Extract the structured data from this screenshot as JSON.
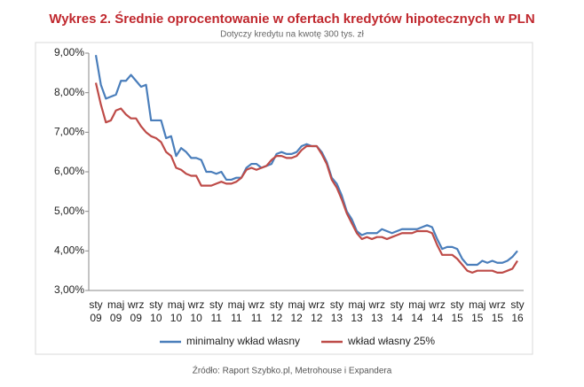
{
  "chart_data": {
    "type": "line",
    "title": "Wykres 2. Średnie oprocentowanie w ofertach kredytów hipotecznych w PLN",
    "subtitle": "Dotyczy kredytu na kwotę 300 tys. zł",
    "source": "Źródło: Raport Szybko.pl, Metrohouse i Expandera",
    "categories": [
      "sty 09",
      null,
      null,
      null,
      "maj 09",
      null,
      null,
      null,
      "wrz 09",
      null,
      null,
      null,
      "sty 10",
      null,
      null,
      null,
      "maj 10",
      null,
      null,
      null,
      "wrz 10",
      null,
      null,
      null,
      "sty 11",
      null,
      null,
      null,
      "maj 11",
      null,
      null,
      null,
      "wrz 11",
      null,
      null,
      null,
      "sty 12",
      null,
      null,
      null,
      "maj 12",
      null,
      null,
      null,
      "wrz 12",
      null,
      null,
      null,
      "sty 13",
      null,
      null,
      null,
      "maj 13",
      null,
      null,
      null,
      "wrz 13",
      null,
      null,
      null,
      "sty 14",
      null,
      null,
      null,
      "maj 14",
      null,
      null,
      null,
      "wrz 14",
      null,
      null,
      null,
      "sty 15",
      null,
      null,
      null,
      "maj 15",
      null,
      null,
      null,
      "wrz 15",
      null,
      null,
      null,
      "sty 16"
    ],
    "series": [
      {
        "name": "minimalny wkład własny",
        "color": "#4a7ebb",
        "values": [
          8.95,
          8.2,
          7.85,
          7.9,
          7.95,
          8.3,
          8.3,
          8.45,
          8.3,
          8.15,
          8.2,
          7.3,
          7.3,
          7.3,
          6.85,
          6.9,
          6.4,
          6.6,
          6.5,
          6.35,
          6.35,
          6.3,
          6.0,
          6.0,
          5.95,
          6.0,
          5.8,
          5.8,
          5.85,
          5.85,
          6.1,
          6.2,
          6.2,
          6.1,
          6.15,
          6.2,
          6.45,
          6.5,
          6.45,
          6.45,
          6.5,
          6.65,
          6.7,
          6.65,
          6.65,
          6.5,
          6.25,
          5.85,
          5.7,
          5.4,
          5.0,
          4.8,
          4.5,
          4.4,
          4.45,
          4.45,
          4.45,
          4.55,
          4.5,
          4.45,
          4.5,
          4.55,
          4.55,
          4.55,
          4.55,
          4.6,
          4.65,
          4.6,
          4.3,
          4.05,
          4.1,
          4.1,
          4.05,
          3.8,
          3.65,
          3.65,
          3.65,
          3.75,
          3.7,
          3.75,
          3.7,
          3.7,
          3.75,
          3.85,
          4.0
        ]
      },
      {
        "name": "wkład własny 25%",
        "color": "#be4b48",
        "values": [
          8.25,
          7.7,
          7.25,
          7.3,
          7.55,
          7.6,
          7.45,
          7.35,
          7.35,
          7.15,
          7.0,
          6.9,
          6.85,
          6.75,
          6.5,
          6.4,
          6.1,
          6.05,
          5.95,
          5.9,
          5.9,
          5.65,
          5.65,
          5.65,
          5.7,
          5.75,
          5.7,
          5.7,
          5.75,
          5.85,
          6.05,
          6.1,
          6.05,
          6.1,
          6.15,
          6.3,
          6.4,
          6.4,
          6.35,
          6.35,
          6.4,
          6.55,
          6.65,
          6.65,
          6.65,
          6.45,
          6.2,
          5.8,
          5.6,
          5.3,
          4.95,
          4.7,
          4.45,
          4.3,
          4.35,
          4.3,
          4.35,
          4.35,
          4.3,
          4.35,
          4.4,
          4.45,
          4.45,
          4.45,
          4.5,
          4.5,
          4.5,
          4.45,
          4.15,
          3.9,
          3.9,
          3.9,
          3.8,
          3.65,
          3.5,
          3.45,
          3.5,
          3.5,
          3.5,
          3.5,
          3.45,
          3.45,
          3.5,
          3.55,
          3.75
        ]
      }
    ],
    "ylim": [
      3,
      9
    ],
    "yticks": [
      {
        "value": 3,
        "label": "3,00%"
      },
      {
        "value": 4,
        "label": "4,00%"
      },
      {
        "value": 5,
        "label": "5,00%"
      },
      {
        "value": 6,
        "label": "6,00%"
      },
      {
        "value": 7,
        "label": "7,00%"
      },
      {
        "value": 8,
        "label": "8,00%"
      },
      {
        "value": 9,
        "label": "9,00%"
      }
    ],
    "grid": false,
    "legend": "bottom"
  }
}
